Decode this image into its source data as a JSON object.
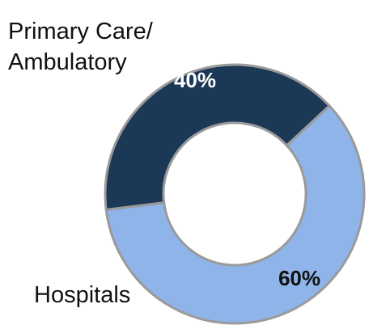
{
  "chart_data": {
    "type": "donut",
    "categories": [
      "Primary Care/ Ambulatory",
      "Hospitals"
    ],
    "values": [
      40,
      60
    ],
    "value_labels": [
      "40%",
      "60%"
    ],
    "colors": [
      "#1c3857",
      "#8fb4ea"
    ]
  }
}
